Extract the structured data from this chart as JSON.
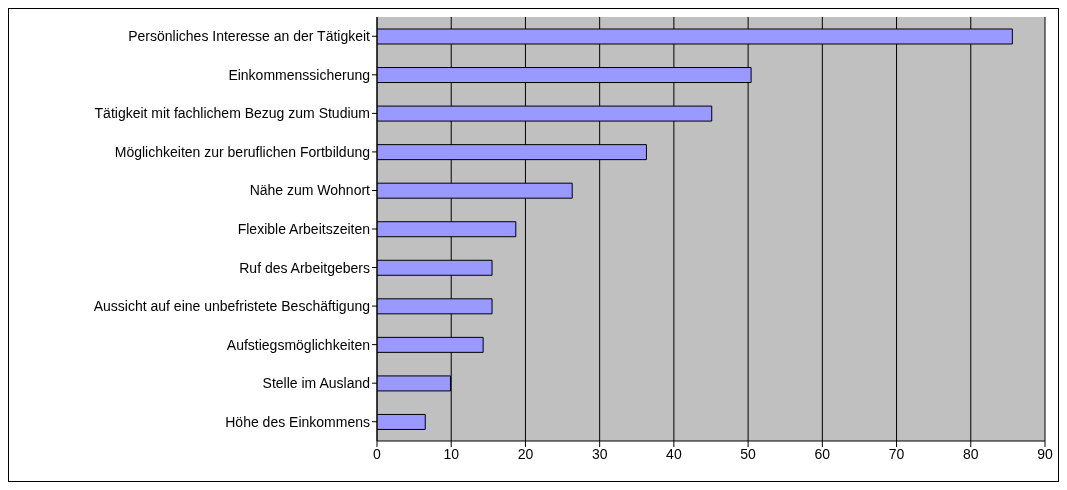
{
  "chart_data": {
    "type": "bar",
    "orientation": "horizontal",
    "categories": [
      "Persönliches Interesse an der Tätigkeit",
      "Einkommenssicherung",
      "Tätigkeit mit fachlichem Bezug zum Studium",
      "Möglichkeiten zur beruflichen Fortbildung",
      "Nähe zum Wohnort",
      "Flexible Arbeitszeiten",
      "Ruf des Arbeitgebers",
      "Aussicht auf eine unbefristete Beschäftigung",
      "Aufstiegsmöglichkeiten",
      "Stelle im Ausland",
      "Höhe des Einkommens"
    ],
    "values": [
      85.6,
      50.4,
      45.1,
      36.3,
      26.3,
      18.7,
      15.5,
      15.5,
      14.3,
      9.9,
      6.5
    ],
    "color": "#9999ff",
    "xlim": [
      0,
      90
    ],
    "xticks": [
      0,
      10,
      20,
      30,
      40,
      50,
      60,
      70,
      80,
      90
    ],
    "grid": "x"
  }
}
